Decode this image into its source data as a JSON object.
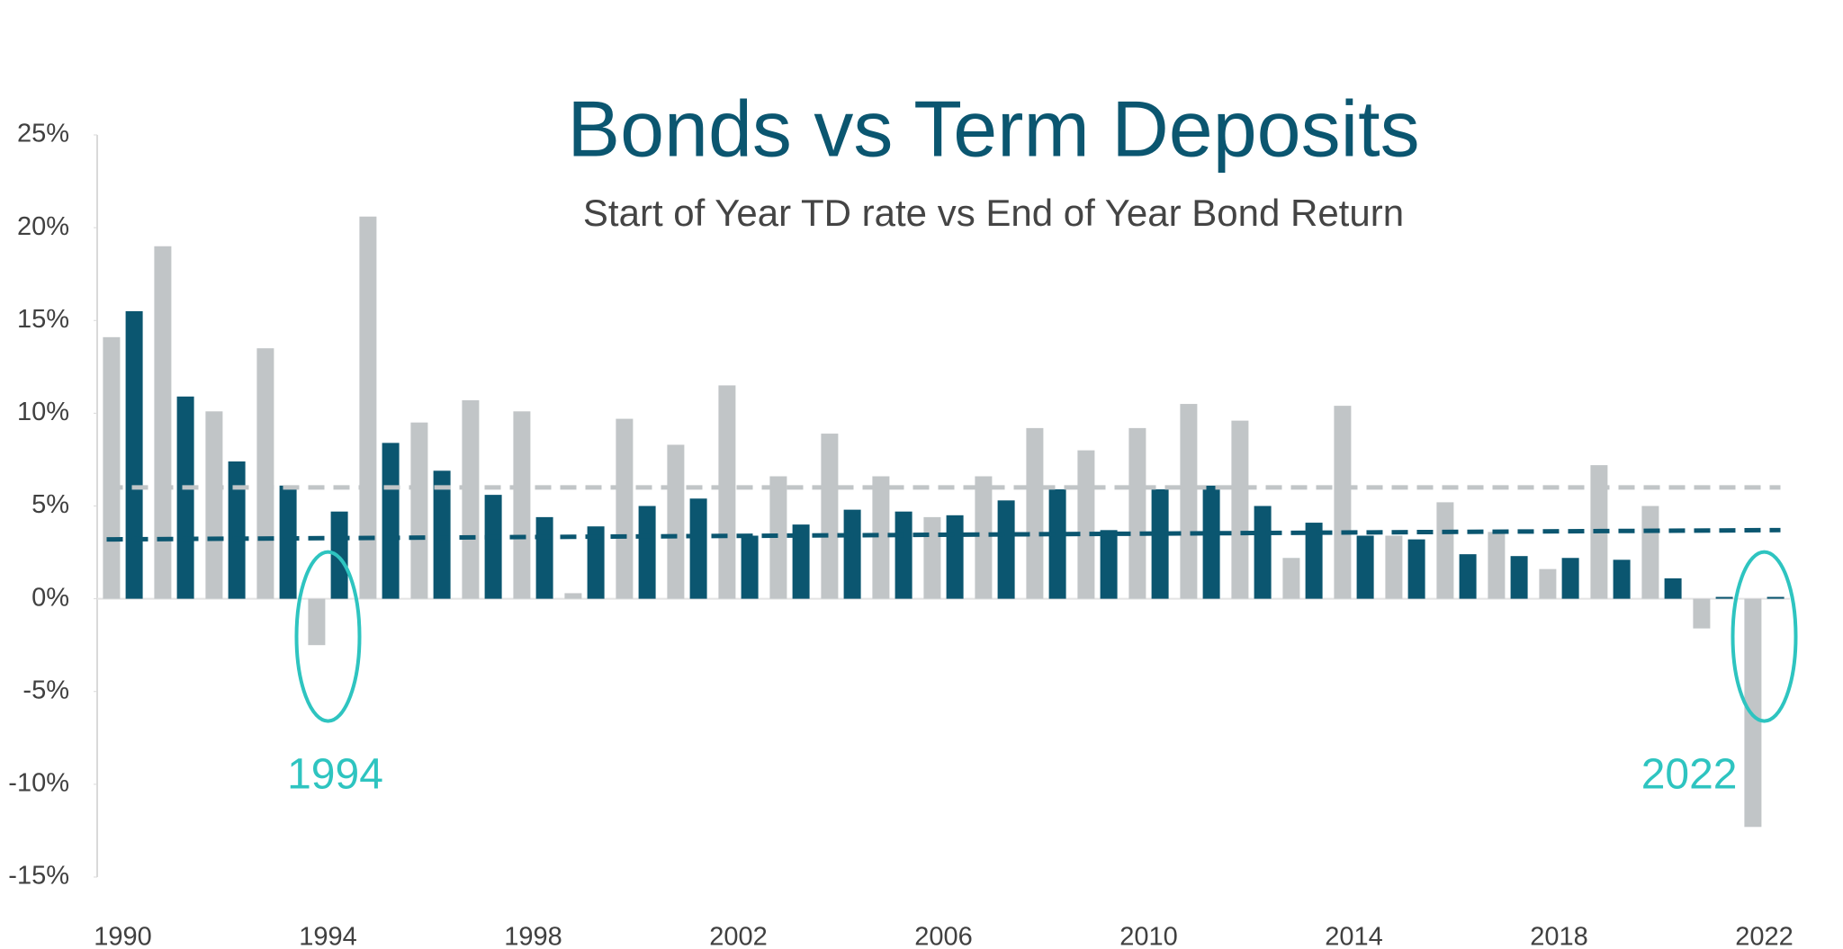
{
  "chart_data": {
    "type": "bar",
    "title": "Bonds vs Term Deposits",
    "subtitle": "Start of Year TD rate vs End of Year Bond Return",
    "categories": [
      "1990",
      null,
      null,
      null,
      "1994",
      null,
      null,
      null,
      "1998",
      null,
      null,
      null,
      "2002",
      null,
      null,
      null,
      "2006",
      null,
      null,
      null,
      "2010",
      null,
      null,
      null,
      "2014",
      null,
      null,
      null,
      "2018",
      null,
      null,
      null,
      "2022"
    ],
    "series": [
      {
        "color": "#c1c5c7",
        "values": [
          14.1,
          19.0,
          10.1,
          13.5,
          -2.5,
          20.6,
          9.5,
          10.7,
          10.1,
          0.3,
          9.7,
          8.3,
          11.5,
          6.6,
          8.9,
          6.6,
          4.4,
          6.6,
          9.2,
          8.0,
          9.2,
          10.5,
          9.6,
          2.2,
          10.4,
          3.4,
          5.2,
          3.6,
          1.6,
          7.2,
          5.0,
          -1.6,
          -12.3
        ]
      },
      {
        "color": "#0b5670",
        "values": [
          15.5,
          10.9,
          7.4,
          6.1,
          4.7,
          8.4,
          6.9,
          5.6,
          4.4,
          3.9,
          5.0,
          5.4,
          3.4,
          4.0,
          4.8,
          4.7,
          4.5,
          5.3,
          5.9,
          3.7,
          5.9,
          6.1,
          5.0,
          4.1,
          3.4,
          3.2,
          2.4,
          2.3,
          2.2,
          2.1,
          1.1,
          0.1,
          0.1
        ]
      }
    ],
    "reference_lines": [
      {
        "color": "#c1c5c7",
        "values": [
          6.0,
          6.0
        ]
      },
      {
        "color": "#0b5670",
        "values": [
          3.2,
          3.7
        ]
      }
    ],
    "annotations": [
      {
        "text": "1994",
        "category": 4,
        "color": "#2ec4c0"
      },
      {
        "text": "2022",
        "category": 32,
        "color": "#2ec4c0"
      }
    ],
    "ylim": [
      -15,
      25
    ],
    "yticks": [
      {
        "value": -15,
        "label": "-15%"
      },
      {
        "value": -10,
        "label": "-10%"
      },
      {
        "value": -5,
        "label": "-5%"
      },
      {
        "value": 0,
        "label": "0%"
      },
      {
        "value": 5,
        "label": "5%"
      },
      {
        "value": 10,
        "label": "10%"
      },
      {
        "value": 15,
        "label": "15%"
      },
      {
        "value": 20,
        "label": "20%"
      },
      {
        "value": 25,
        "label": "25%"
      }
    ]
  }
}
